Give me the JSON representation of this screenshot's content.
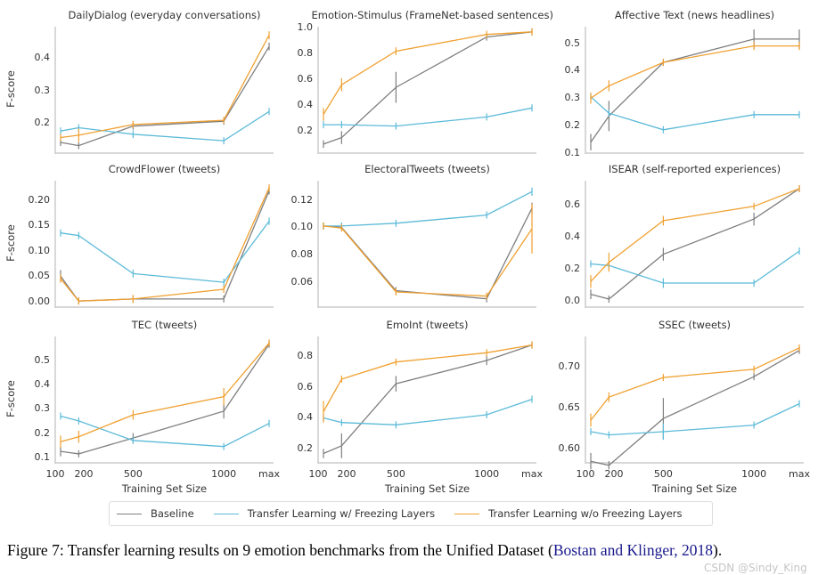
{
  "colors": {
    "Baseline": "#7f7f7f",
    "Transfer Learning w/ Freezing Layers": "#5bbad8",
    "Transfer Learning w/o Freezing Layers": "#f0a030",
    "axis": "#cccccc"
  },
  "legend": {
    "placement": "bottom-center",
    "entries": [
      "Baseline",
      "Transfer Learning w/ Freezing Layers",
      "Transfer Learning w/o Freezing Layers"
    ]
  },
  "caption": {
    "prefix": "Figure 7: Transfer learning results on 9 emotion benchmarks from the Unified Dataset (",
    "citation": "Bostan and Klinger, 2018",
    "suffix": ")."
  },
  "watermark": "CSDN @Sindy_King",
  "chart_data": [
    {
      "type": "line",
      "title": "DailyDialog (everyday conversations)",
      "ylabel": "F-score",
      "xlabel": "",
      "categories": [
        "100",
        "200",
        "500",
        "1000",
        "max"
      ],
      "ylim": [
        0.107,
        0.496
      ],
      "yticks": [
        0.2,
        0.3,
        0.4
      ],
      "ytick_labels": [
        "0.2",
        "0.3",
        "0.4"
      ],
      "grid": false,
      "series": [
        {
          "name": "Baseline",
          "values": [
            0.14,
            0.13,
            0.19,
            0.205,
            0.435
          ],
          "err": [
            0.005,
            0.003,
            0.006,
            0.004,
            0.012
          ]
        },
        {
          "name": "Transfer Learning w/ Freezing Layers",
          "values": [
            0.175,
            0.185,
            0.165,
            0.145,
            0.235
          ],
          "err": [
            0.004,
            0.005,
            0.012,
            0.005,
            0.003
          ]
        },
        {
          "name": "Transfer Learning w/o Freezing Layers",
          "values": [
            0.155,
            0.162,
            0.195,
            0.208,
            0.47
          ],
          "err": [
            0.008,
            0.02,
            0.008,
            0.004,
            0.012
          ]
        }
      ]
    },
    {
      "type": "line",
      "title": "Emotion-Stimulus (FrameNet-based sentences)",
      "ylabel": "",
      "xlabel": "",
      "categories": [
        "100",
        "200",
        "500",
        "1000",
        "max"
      ],
      "ylim": [
        0.03,
        1.01
      ],
      "yticks": [
        0.2,
        0.4,
        0.6,
        0.8,
        1.0
      ],
      "ytick_labels": [
        "0.2",
        "0.4",
        "0.6",
        "0.8",
        "1.0"
      ],
      "grid": false,
      "series": [
        {
          "name": "Baseline",
          "values": [
            0.1,
            0.15,
            0.54,
            0.93,
            0.97
          ],
          "err": [
            0.03,
            0.05,
            0.12,
            0.02,
            0.01
          ]
        },
        {
          "name": "Transfer Learning w/ Freezing Layers",
          "values": [
            0.25,
            0.25,
            0.24,
            0.31,
            0.38
          ],
          "err": [
            0.01,
            0.01,
            0.02,
            0.01,
            0.02
          ]
        },
        {
          "name": "Transfer Learning w/o Freezing Layers",
          "values": [
            0.33,
            0.56,
            0.82,
            0.95,
            0.97
          ],
          "err": [
            0.05,
            0.05,
            0.03,
            0.01,
            0.01
          ]
        }
      ]
    },
    {
      "type": "line",
      "title": "Affective Text (news headlines)",
      "ylabel": "",
      "xlabel": "",
      "categories": [
        "100",
        "200",
        "500",
        "1000",
        "max"
      ],
      "ylim": [
        0.1,
        0.56
      ],
      "yticks": [
        0.1,
        0.2,
        0.3,
        0.4,
        0.5
      ],
      "ytick_labels": [
        "0.1",
        "0.2",
        "0.3",
        "0.4",
        "0.5"
      ],
      "grid": false,
      "series": [
        {
          "name": "Baseline",
          "values": [
            0.14,
            0.235,
            0.43,
            0.515,
            0.515
          ],
          "err": [
            0.03,
            0.055,
            0.01,
            0.035,
            0.035
          ]
        },
        {
          "name": "Transfer Learning w/ Freezing Layers",
          "values": [
            0.305,
            0.245,
            0.185,
            0.24,
            0.24
          ],
          "err": [
            0.005,
            0.01,
            0.01,
            0.01,
            0.01
          ]
        },
        {
          "name": "Transfer Learning w/o Freezing Layers",
          "values": [
            0.3,
            0.345,
            0.43,
            0.49,
            0.49
          ],
          "err": [
            0.02,
            0.02,
            0.01,
            0.015,
            0.015
          ]
        }
      ]
    },
    {
      "type": "line",
      "title": "CrowdFlower (tweets)",
      "ylabel": "F-score",
      "xlabel": "",
      "categories": [
        "100",
        "200",
        "500",
        "1000",
        "max"
      ],
      "ylim": [
        -0.011,
        0.238
      ],
      "yticks": [
        0,
        0.05,
        0.1,
        0.15,
        0.2
      ],
      "ytick_labels": [
        "0.00",
        "0.05",
        "0.10",
        "0.15",
        "0.20"
      ],
      "grid": false,
      "series": [
        {
          "name": "Baseline",
          "values": [
            0.05,
            0.001,
            0.005,
            0.005,
            0.218
          ],
          "err": [
            0.012,
            0.002,
            0.003,
            0.003,
            0.004
          ]
        },
        {
          "name": "Transfer Learning w/ Freezing Layers",
          "values": [
            0.135,
            0.13,
            0.055,
            0.038,
            0.158
          ],
          "err": [
            0.003,
            0.004,
            0.008,
            0.005,
            0.003
          ]
        },
        {
          "name": "Transfer Learning w/o Freezing Layers",
          "values": [
            0.045,
            0.001,
            0.005,
            0.024,
            0.224
          ],
          "err": [
            0.008,
            0.002,
            0.008,
            0.003,
            0.004
          ]
        }
      ]
    },
    {
      "type": "line",
      "title": "ElectoralTweets (tweets)",
      "ylabel": "",
      "xlabel": "",
      "categories": [
        "100",
        "200",
        "500",
        "1000",
        "max"
      ],
      "ylim": [
        0.042,
        0.134
      ],
      "yticks": [
        0.06,
        0.08,
        0.1,
        0.12
      ],
      "ytick_labels": [
        "0.06",
        "0.08",
        "0.10",
        "0.12"
      ],
      "grid": false,
      "series": [
        {
          "name": "Baseline",
          "values": [
            0.101,
            0.1,
            0.054,
            0.048,
            0.114
          ],
          "err": [
            0.0005,
            0.0005,
            0.0015,
            0.001,
            0.004
          ]
        },
        {
          "name": "Transfer Learning w/ Freezing Layers",
          "values": [
            0.101,
            0.101,
            0.103,
            0.109,
            0.126
          ],
          "err": [
            0.0005,
            0.0005,
            0.0005,
            0.001,
            0.003
          ]
        },
        {
          "name": "Transfer Learning w/o Freezing Layers",
          "values": [
            0.101,
            0.0995,
            0.053,
            0.05,
            0.099
          ],
          "err": [
            0.0005,
            0.0005,
            0.001,
            0.0015,
            0.018
          ]
        }
      ]
    },
    {
      "type": "line",
      "title": "ISEAR (self-reported experiences)",
      "ylabel": "",
      "xlabel": "",
      "categories": [
        "100",
        "200",
        "500",
        "1000",
        "max"
      ],
      "ylim": [
        -0.04,
        0.75
      ],
      "yticks": [
        0,
        0.2,
        0.4,
        0.6
      ],
      "ytick_labels": [
        "0.0",
        "0.2",
        "0.4",
        "0.6"
      ],
      "grid": false,
      "series": [
        {
          "name": "Baseline",
          "values": [
            0.04,
            0.01,
            0.29,
            0.51,
            0.7
          ],
          "err": [
            0.03,
            0.01,
            0.04,
            0.04,
            0.01
          ]
        },
        {
          "name": "Transfer Learning w/ Freezing Layers",
          "values": [
            0.23,
            0.22,
            0.11,
            0.11,
            0.31
          ],
          "err": [
            0.01,
            0.01,
            0.03,
            0.02,
            0.02
          ]
        },
        {
          "name": "Transfer Learning w/o Freezing Layers",
          "values": [
            0.12,
            0.24,
            0.5,
            0.59,
            0.7
          ],
          "err": [
            0.04,
            0.06,
            0.03,
            0.015,
            0.01
          ]
        }
      ]
    },
    {
      "type": "line",
      "title": "TEC (tweets)",
      "ylabel": "F-score",
      "xlabel": "Training Set Size",
      "categories": [
        "100",
        "200",
        "500",
        "1000",
        "max"
      ],
      "ylim": [
        0.078,
        0.597
      ],
      "yticks": [
        0.1,
        0.2,
        0.3,
        0.4,
        0.5
      ],
      "ytick_labels": [
        "0.1",
        "0.2",
        "0.3",
        "0.4",
        "0.5"
      ],
      "grid": false,
      "series": [
        {
          "name": "Baseline",
          "values": [
            0.125,
            0.115,
            0.18,
            0.29,
            0.565
          ],
          "err": [
            0.02,
            0.01,
            0.02,
            0.03,
            0.01
          ]
        },
        {
          "name": "Transfer Learning w/ Freezing Layers",
          "values": [
            0.27,
            0.25,
            0.17,
            0.145,
            0.24
          ],
          "err": [
            0.005,
            0.01,
            0.01,
            0.01,
            0.01
          ]
        },
        {
          "name": "Transfer Learning w/o Freezing Layers",
          "values": [
            0.165,
            0.185,
            0.275,
            0.35,
            0.57
          ],
          "err": [
            0.025,
            0.025,
            0.02,
            0.035,
            0.01
          ]
        }
      ]
    },
    {
      "type": "line",
      "title": "EmoInt (tweets)",
      "ylabel": "",
      "xlabel": "Training Set Size",
      "categories": [
        "100",
        "200",
        "500",
        "1000",
        "max"
      ],
      "ylim": [
        0.11,
        0.925
      ],
      "yticks": [
        0.2,
        0.4,
        0.6,
        0.8
      ],
      "ytick_labels": [
        "0.2",
        "0.4",
        "0.6",
        "0.8"
      ],
      "grid": false,
      "series": [
        {
          "name": "Baseline",
          "values": [
            0.17,
            0.22,
            0.62,
            0.77,
            0.87
          ],
          "err": [
            0.03,
            0.08,
            0.05,
            0.03,
            0.01
          ]
        },
        {
          "name": "Transfer Learning w/ Freezing Layers",
          "values": [
            0.4,
            0.37,
            0.355,
            0.42,
            0.52
          ],
          "err": [
            0.01,
            0.02,
            0.01,
            0.015,
            0.01
          ]
        },
        {
          "name": "Transfer Learning w/o Freezing Layers",
          "values": [
            0.44,
            0.65,
            0.76,
            0.82,
            0.87
          ],
          "err": [
            0.07,
            0.01,
            0.01,
            0.01,
            0.01
          ]
        }
      ]
    },
    {
      "type": "line",
      "title": "SSEC (tweets)",
      "ylabel": "",
      "xlabel": "Training Set Size",
      "categories": [
        "100",
        "200",
        "500",
        "1000",
        "max"
      ],
      "ylim": [
        0.583,
        0.737
      ],
      "yticks": [
        0.6,
        0.65,
        0.7
      ],
      "ytick_labels": [
        "0.60",
        "0.65",
        "0.70"
      ],
      "grid": false,
      "series": [
        {
          "name": "Baseline",
          "values": [
            0.585,
            0.58,
            0.637,
            0.688,
            0.72
          ],
          "err": [
            0.01,
            0.005,
            0.025,
            0.004,
            0.003
          ]
        },
        {
          "name": "Transfer Learning w/ Freezing Layers",
          "values": [
            0.621,
            0.617,
            0.621,
            0.629,
            0.655
          ],
          "err": [
            0.003,
            0.004,
            0.01,
            0.004,
            0.003
          ]
        },
        {
          "name": "Transfer Learning w/o Freezing Layers",
          "values": [
            0.635,
            0.663,
            0.687,
            0.697,
            0.723
          ],
          "err": [
            0.008,
            0.006,
            0.002,
            0.002,
            0.004
          ]
        }
      ]
    }
  ]
}
